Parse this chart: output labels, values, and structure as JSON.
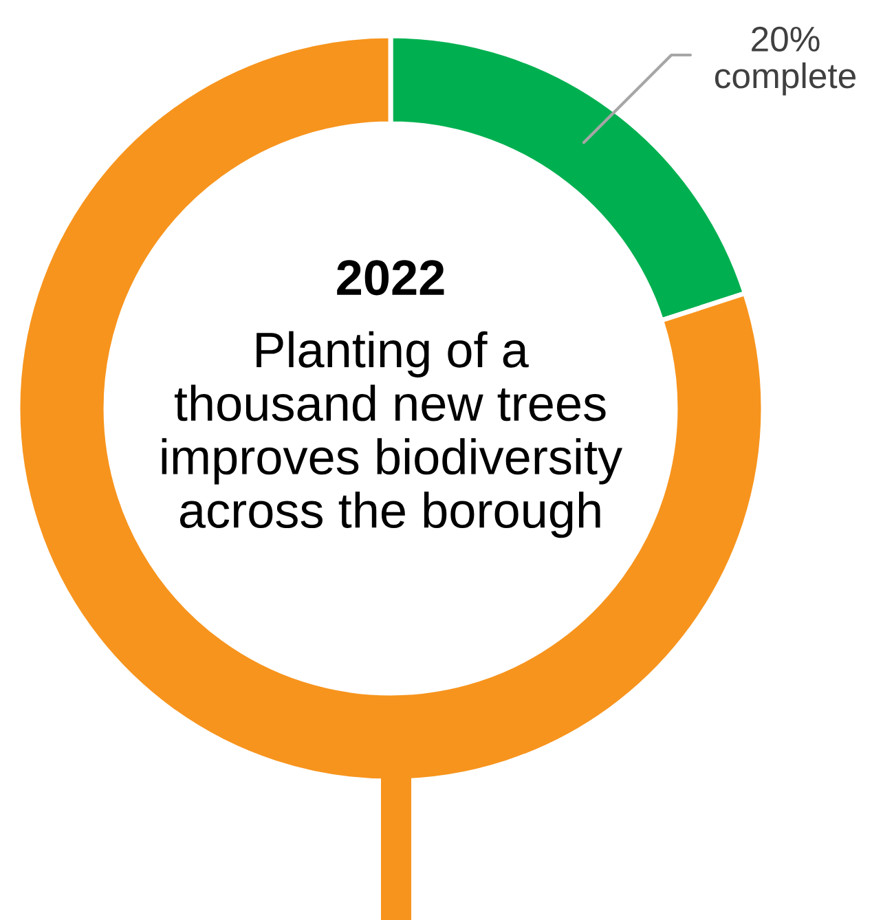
{
  "chart_data": {
    "type": "donut",
    "title": "2022",
    "subtitle": "Planting of a\nthousand new trees\nimproves biodiversity\nacross the borough",
    "categories": [
      "complete",
      null
    ],
    "values": [
      20,
      80
    ],
    "colors": [
      "#00b050",
      "#f7941d"
    ],
    "value_labels": [
      "20%",
      null
    ]
  }
}
